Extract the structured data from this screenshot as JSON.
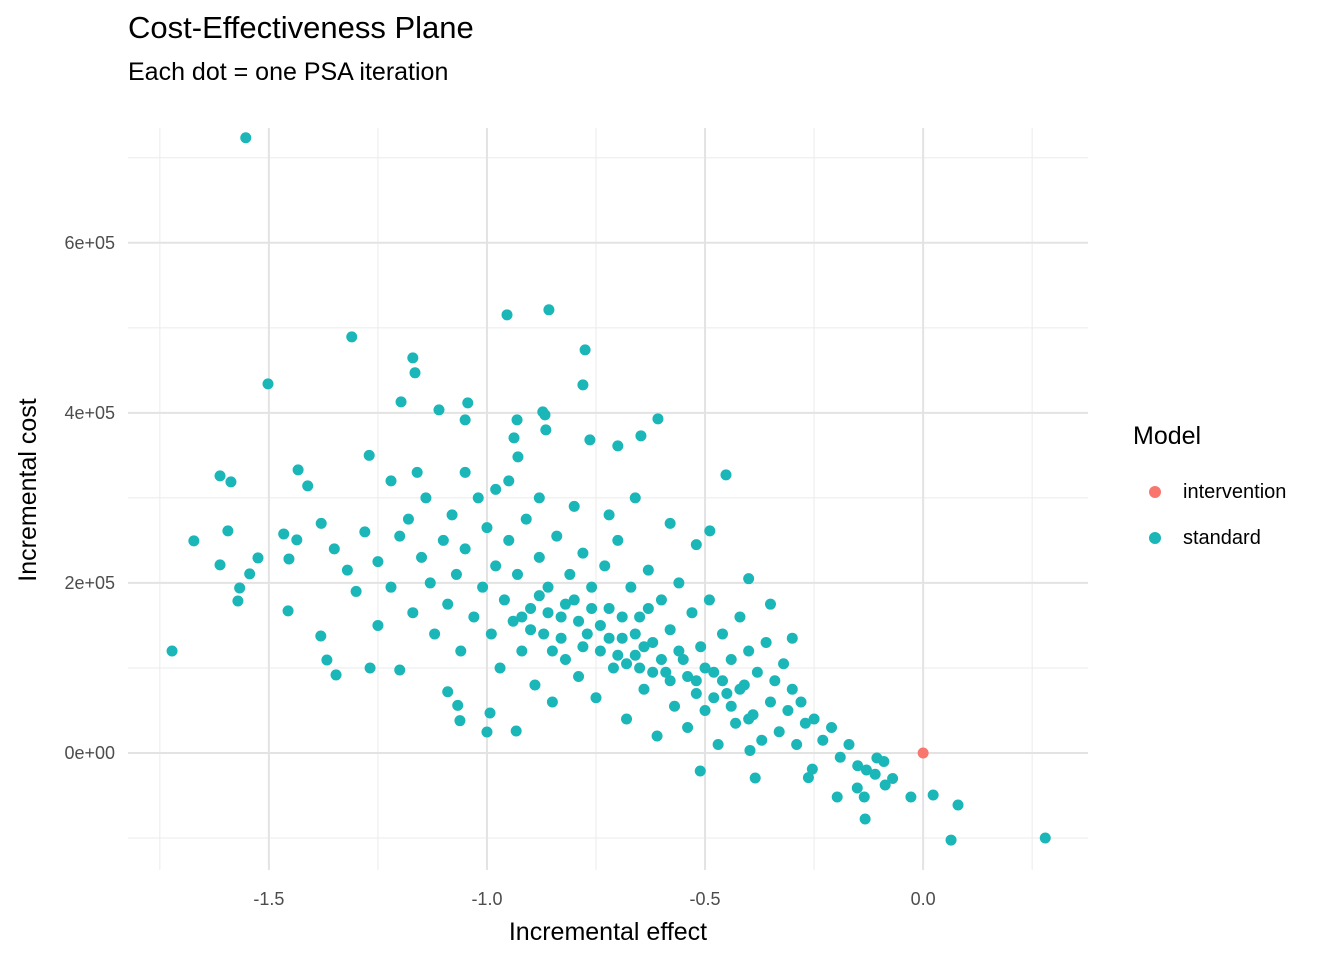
{
  "chart_data": {
    "type": "scatter",
    "title": "Cost-Effectiveness Plane",
    "subtitle": "Each dot = one PSA iteration",
    "xlabel": "Incremental effect",
    "ylabel": "Incremental cost",
    "xlim": [
      -1.823,
      0.378
    ],
    "ylim": [
      -137600,
      735000
    ],
    "x_ticks": [
      -1.5,
      -1.0,
      -0.5,
      0.0
    ],
    "x_tick_labels": [
      "-1.5",
      "-1.0",
      "-0.5",
      "0.0"
    ],
    "x_minor": [
      -1.75,
      -1.25,
      -0.75,
      -0.25,
      0.25
    ],
    "y_ticks": [
      0,
      200000,
      400000,
      600000
    ],
    "y_tick_labels": [
      "0e+00",
      "2e+05",
      "4e+05",
      "6e+05"
    ],
    "y_minor": [
      -100000,
      100000,
      300000,
      500000,
      700000
    ],
    "grid": true,
    "legend": {
      "title": "Model",
      "placement": "right"
    },
    "series": [
      {
        "name": "intervention",
        "color": "#F8766D",
        "points": [
          [
            0,
            0
          ]
        ]
      },
      {
        "name": "standard",
        "color": "#1AB6B8",
        "points": [
          [
            -1.553,
            723500
          ],
          [
            -1.31,
            489400
          ],
          [
            -1.502,
            434100
          ],
          [
            -0.954,
            515300
          ],
          [
            -0.858,
            521200
          ],
          [
            -0.775,
            474100
          ],
          [
            -0.78,
            432900
          ],
          [
            -1.17,
            464700
          ],
          [
            -1.165,
            447100
          ],
          [
            -1.197,
            412900
          ],
          [
            -1.11,
            403500
          ],
          [
            -1.044,
            411800
          ],
          [
            -1.05,
            391800
          ],
          [
            -1.722,
            120000
          ],
          [
            -1.672,
            249400
          ],
          [
            -1.612,
            221200
          ],
          [
            -1.612,
            325900
          ],
          [
            -1.587,
            318800
          ],
          [
            -1.594,
            261200
          ],
          [
            -1.567,
            194100
          ],
          [
            -1.571,
            178800
          ],
          [
            -1.544,
            210600
          ],
          [
            -1.525,
            229400
          ],
          [
            -1.454,
            228200
          ],
          [
            -1.436,
            250600
          ],
          [
            -1.466,
            257600
          ],
          [
            -1.456,
            167100
          ],
          [
            -1.433,
            333000
          ],
          [
            -1.411,
            314100
          ],
          [
            0.28,
            -100000
          ],
          [
            0.064,
            -102400
          ],
          [
            0.08,
            -61200
          ],
          [
            0.023,
            -49400
          ],
          [
            -0.028,
            -51800
          ],
          [
            -0.133,
            -77600
          ],
          [
            -0.135,
            -51800
          ],
          [
            -0.151,
            -41200
          ],
          [
            -0.197,
            -51800
          ],
          [
            -0.087,
            -37600
          ],
          [
            -0.106,
            -5900
          ],
          [
            -0.452,
            327100
          ],
          [
            -0.489,
            261200
          ],
          [
            -0.608,
            393000
          ],
          [
            -0.647,
            373000
          ],
          [
            -0.7,
            361200
          ],
          [
            -0.764,
            368200
          ],
          [
            -0.865,
            380000
          ],
          [
            -0.938,
            370600
          ],
          [
            -0.929,
            348200
          ],
          [
            -0.931,
            391800
          ],
          [
            -0.872,
            401200
          ],
          [
            -0.867,
            397700
          ],
          [
            -1.381,
            137600
          ],
          [
            -1.367,
            109400
          ],
          [
            -1.346,
            91800
          ],
          [
            -1.268,
            100000
          ],
          [
            -1.2,
            97600
          ],
          [
            -1.09,
            72000
          ],
          [
            -1.067,
            56000
          ],
          [
            -1.0,
            24700
          ],
          [
            -0.933,
            25900
          ],
          [
            -0.993,
            47000
          ],
          [
            -1.062,
            38000
          ],
          [
            -0.385,
            -29400
          ],
          [
            -0.397,
            3000
          ],
          [
            -0.511,
            -21200
          ],
          [
            -0.254,
            -19000
          ],
          [
            -0.263,
            -29000
          ],
          [
            -1.38,
            270000
          ],
          [
            -1.35,
            240000
          ],
          [
            -1.32,
            215000
          ],
          [
            -1.3,
            190000
          ],
          [
            -1.28,
            260000
          ],
          [
            -1.25,
            225000
          ],
          [
            -1.25,
            150000
          ],
          [
            -1.22,
            195000
          ],
          [
            -1.2,
            255000
          ],
          [
            -1.18,
            275000
          ],
          [
            -1.17,
            165000
          ],
          [
            -1.15,
            230000
          ],
          [
            -1.14,
            300000
          ],
          [
            -1.13,
            200000
          ],
          [
            -1.12,
            140000
          ],
          [
            -1.1,
            250000
          ],
          [
            -1.09,
            175000
          ],
          [
            -1.08,
            280000
          ],
          [
            -1.07,
            210000
          ],
          [
            -1.06,
            120000
          ],
          [
            -1.05,
            240000
          ],
          [
            -1.03,
            160000
          ],
          [
            -1.02,
            300000
          ],
          [
            -1.01,
            195000
          ],
          [
            -1.0,
            265000
          ],
          [
            -0.99,
            140000
          ],
          [
            -0.98,
            220000
          ],
          [
            -0.97,
            100000
          ],
          [
            -0.96,
            180000
          ],
          [
            -0.95,
            250000
          ],
          [
            -0.94,
            155000
          ],
          [
            -0.93,
            210000
          ],
          [
            -0.92,
            120000
          ],
          [
            -0.91,
            275000
          ],
          [
            -0.9,
            170000
          ],
          [
            -0.89,
            80000
          ],
          [
            -0.88,
            230000
          ],
          [
            -0.87,
            140000
          ],
          [
            -0.86,
            195000
          ],
          [
            -0.85,
            60000
          ],
          [
            -0.84,
            255000
          ],
          [
            -0.83,
            160000
          ],
          [
            -0.82,
            110000
          ],
          [
            -0.81,
            210000
          ],
          [
            -0.8,
            180000
          ],
          [
            -0.79,
            90000
          ],
          [
            -0.78,
            235000
          ],
          [
            -0.77,
            140000
          ],
          [
            -0.76,
            195000
          ],
          [
            -0.75,
            65000
          ],
          [
            -0.74,
            120000
          ],
          [
            -0.73,
            220000
          ],
          [
            -0.72,
            170000
          ],
          [
            -0.71,
            100000
          ],
          [
            -0.7,
            250000
          ],
          [
            -0.69,
            135000
          ],
          [
            -0.68,
            40000
          ],
          [
            -0.67,
            195000
          ],
          [
            -0.66,
            115000
          ],
          [
            -0.65,
            160000
          ],
          [
            -0.64,
            75000
          ],
          [
            -0.63,
            215000
          ],
          [
            -0.62,
            130000
          ],
          [
            -0.61,
            20000
          ],
          [
            -0.6,
            180000
          ],
          [
            -0.59,
            95000
          ],
          [
            -0.58,
            145000
          ],
          [
            -0.57,
            55000
          ],
          [
            -0.56,
            200000
          ],
          [
            -0.55,
            110000
          ],
          [
            -0.54,
            30000
          ],
          [
            -0.53,
            165000
          ],
          [
            -0.52,
            85000
          ],
          [
            -0.51,
            125000
          ],
          [
            -0.5,
            50000
          ],
          [
            -0.49,
            180000
          ],
          [
            -0.48,
            95000
          ],
          [
            -0.47,
            10000
          ],
          [
            -0.46,
            140000
          ],
          [
            -0.45,
            70000
          ],
          [
            -0.44,
            110000
          ],
          [
            -0.43,
            35000
          ],
          [
            -0.42,
            160000
          ],
          [
            -0.41,
            80000
          ],
          [
            -0.4,
            120000
          ],
          [
            -0.39,
            45000
          ],
          [
            -0.38,
            95000
          ],
          [
            -0.37,
            15000
          ],
          [
            -0.36,
            130000
          ],
          [
            -0.35,
            60000
          ],
          [
            -0.34,
            85000
          ],
          [
            -0.33,
            25000
          ],
          [
            -0.32,
            105000
          ],
          [
            -0.31,
            50000
          ],
          [
            -0.3,
            75000
          ],
          [
            -0.29,
            10000
          ],
          [
            -0.28,
            60000
          ],
          [
            -0.27,
            35000
          ],
          [
            -0.25,
            40000
          ],
          [
            -0.23,
            15000
          ],
          [
            -0.21,
            30000
          ],
          [
            -0.19,
            -5000
          ],
          [
            -0.17,
            10000
          ],
          [
            -0.15,
            -15000
          ],
          [
            -0.13,
            -20000
          ],
          [
            -0.11,
            -25000
          ],
          [
            -0.09,
            -10000
          ],
          [
            -0.07,
            -30000
          ],
          [
            -0.95,
            320000
          ],
          [
            -0.88,
            300000
          ],
          [
            -0.8,
            290000
          ],
          [
            -0.72,
            280000
          ],
          [
            -0.66,
            300000
          ],
          [
            -0.58,
            270000
          ],
          [
            -0.52,
            245000
          ],
          [
            -0.4,
            205000
          ],
          [
            -0.35,
            175000
          ],
          [
            -0.3,
            135000
          ],
          [
            -1.27,
            350000
          ],
          [
            -1.22,
            320000
          ],
          [
            -1.16,
            330000
          ],
          [
            -1.05,
            330000
          ],
          [
            -0.98,
            310000
          ],
          [
            -0.85,
            120000
          ],
          [
            -0.83,
            135000
          ],
          [
            -0.78,
            125000
          ],
          [
            -0.74,
            150000
          ],
          [
            -0.7,
            115000
          ],
          [
            -0.68,
            105000
          ],
          [
            -0.66,
            140000
          ],
          [
            -0.64,
            125000
          ],
          [
            -0.62,
            95000
          ],
          [
            -0.6,
            110000
          ],
          [
            -0.58,
            85000
          ],
          [
            -0.56,
            120000
          ],
          [
            -0.54,
            90000
          ],
          [
            -0.52,
            70000
          ],
          [
            -0.5,
            100000
          ],
          [
            -0.48,
            65000
          ],
          [
            -0.46,
            85000
          ],
          [
            -0.44,
            55000
          ],
          [
            -0.42,
            75000
          ],
          [
            -0.4,
            40000
          ],
          [
            -0.92,
            160000
          ],
          [
            -0.9,
            145000
          ],
          [
            -0.88,
            185000
          ],
          [
            -0.86,
            165000
          ],
          [
            -0.82,
            175000
          ],
          [
            -0.79,
            155000
          ],
          [
            -0.76,
            170000
          ],
          [
            -0.72,
            135000
          ],
          [
            -0.69,
            160000
          ],
          [
            -0.65,
            100000
          ],
          [
            -0.63,
            170000
          ]
        ]
      }
    ]
  }
}
